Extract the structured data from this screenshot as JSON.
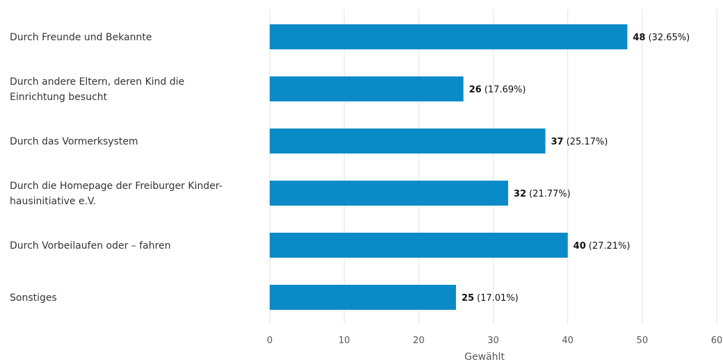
{
  "chart_data": {
    "type": "bar",
    "orientation": "horizontal",
    "categories": [
      [
        "Durch Freunde und Bekannte"
      ],
      [
        "Durch andere Eltern, deren Kind die",
        "Einrichtung besucht"
      ],
      [
        "Durch das Vormerksystem"
      ],
      [
        "Durch die Homepage der Freiburger Kinder-",
        "hausinitiative e.V."
      ],
      [
        "Durch Vorbeilaufen oder – fahren"
      ],
      [
        "Sonstiges"
      ]
    ],
    "values": [
      48,
      26,
      37,
      32,
      40,
      25
    ],
    "percent_labels": [
      "(32.65%)",
      "(17.69%)",
      "(25.17%)",
      "(21.77%)",
      "(27.21%)",
      "(17.01%)"
    ],
    "xlabel": "Gewählt",
    "xlim": [
      0,
      60
    ],
    "xticks": [
      0,
      10,
      20,
      30,
      40,
      50,
      60
    ],
    "grid": true,
    "bar_color": "#0a8bc8",
    "grid_color": "#e3e3e3"
  }
}
